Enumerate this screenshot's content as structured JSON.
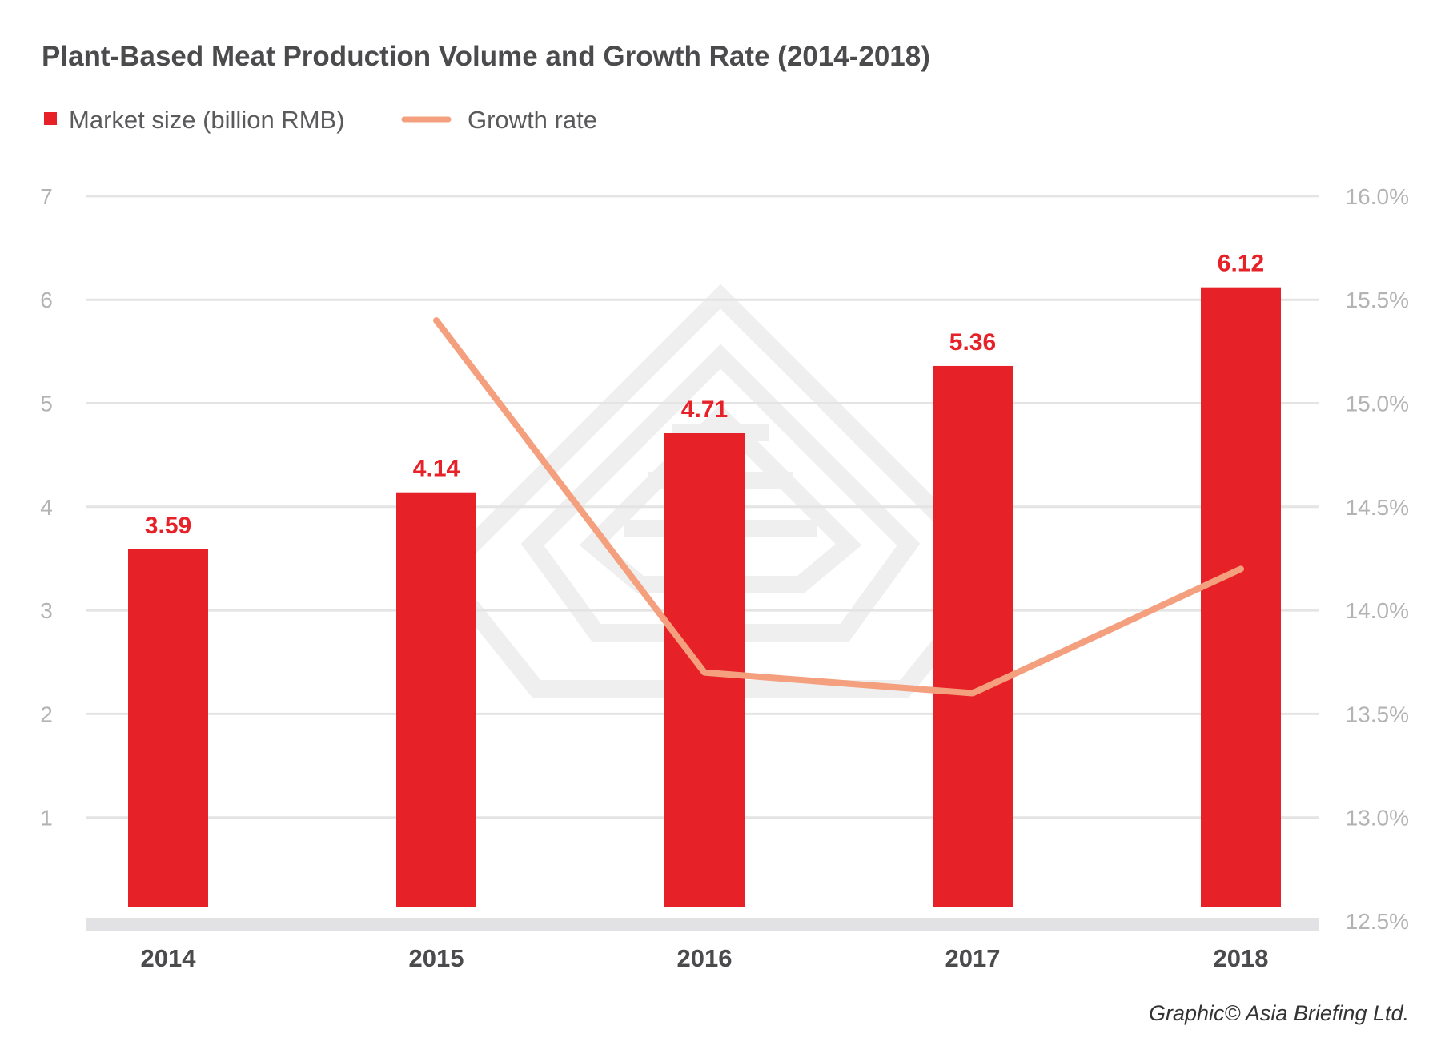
{
  "chart_data": {
    "type": "bar",
    "title": "Plant-Based Meat Production Volume and Growth Rate (2014-2018)",
    "categories": [
      "2014",
      "2015",
      "2016",
      "2017",
      "2018"
    ],
    "series": [
      {
        "name": "Market size (billion RMB)",
        "type": "bar",
        "axis": "left",
        "color": "#e62128",
        "values": [
          3.59,
          4.14,
          4.71,
          5.36,
          6.12
        ],
        "labels": [
          "3.59",
          "4.14",
          "4.71",
          "5.36",
          "6.12"
        ]
      },
      {
        "name": "Growth rate",
        "type": "line",
        "axis": "right",
        "color": "#f4a07e",
        "values": [
          null,
          15.4,
          13.7,
          13.6,
          14.2
        ]
      }
    ],
    "y_left": {
      "ylim": [
        0,
        7
      ],
      "ticks": [
        1,
        2,
        3,
        4,
        5,
        6,
        7
      ],
      "tick_labels": [
        "1",
        "2",
        "3",
        "4",
        "5",
        "6",
        "7"
      ]
    },
    "y_right": {
      "ylim": [
        12.5,
        16.0
      ],
      "ticks": [
        12.5,
        13.0,
        13.5,
        14.0,
        14.5,
        15.0,
        15.5,
        16.0
      ],
      "tick_labels": [
        "12.5%",
        "13.0%",
        "13.5%",
        "14.0%",
        "14.5%",
        "15.0%",
        "15.5%",
        "16.0%"
      ]
    },
    "grid": true,
    "legend_position": "top-left",
    "credit": "Graphic© Asia Briefing Ltd.",
    "colors": {
      "grid": "#e4e4e4",
      "baseline": "#e2e2e4",
      "watermark": "#ececec"
    }
  }
}
